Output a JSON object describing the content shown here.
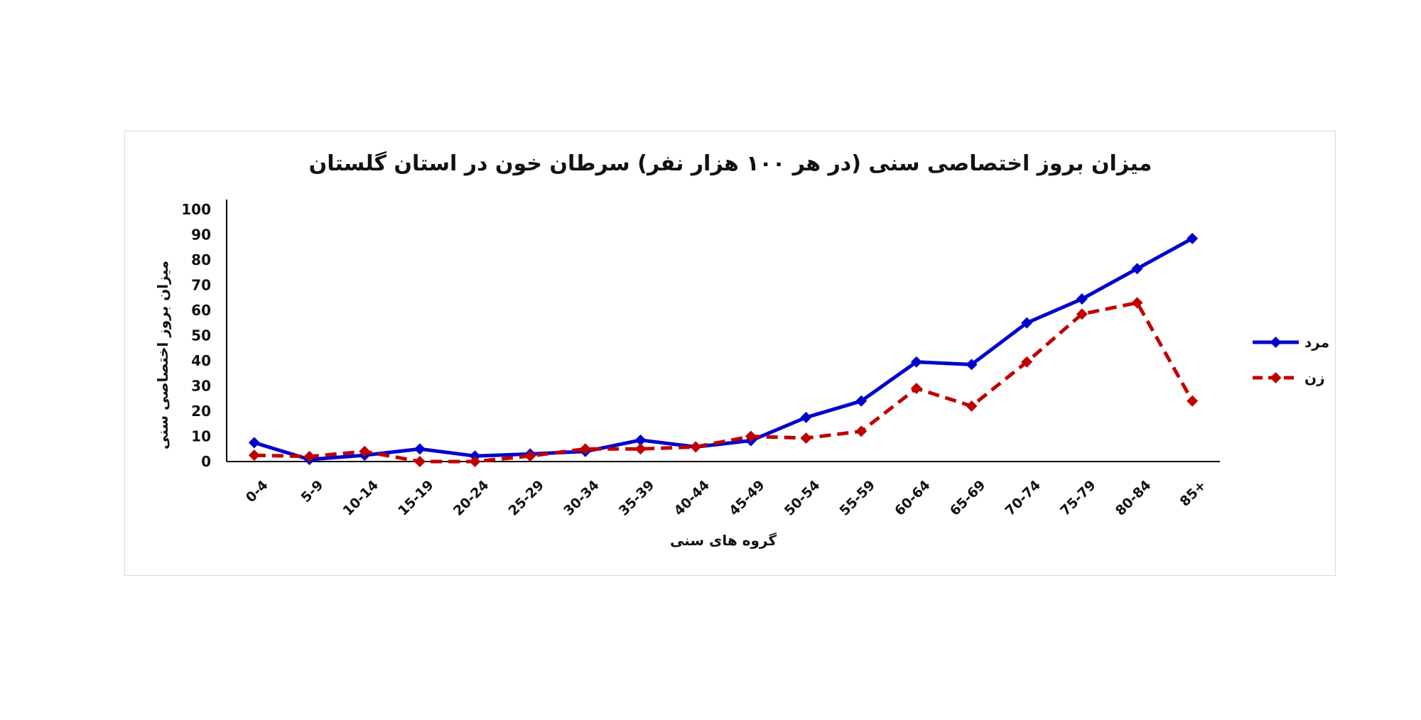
{
  "chart_data": {
    "type": "line",
    "title": "میزان بروز اختصاصی سنی (در هر ۱۰۰ هزار نفر) سرطان خون در استان گلستان",
    "xlabel": "گروه های سنی",
    "ylabel": "میزان بروز اختصاصی سنی",
    "ylim": [
      0,
      100
    ],
    "yticks": [
      0,
      10,
      20,
      30,
      40,
      50,
      60,
      70,
      80,
      90,
      100
    ],
    "categories": [
      "0-4",
      "5-9",
      "10-14",
      "15-19",
      "20-24",
      "25-29",
      "30-34",
      "35-39",
      "40-44",
      "45-49",
      "50-54",
      "55-59",
      "60-64",
      "65-69",
      "70-74",
      "75-79",
      "80-84",
      "85+"
    ],
    "series": [
      {
        "name": "مرد",
        "color": "#0000cc",
        "dash": false,
        "values": [
          7.5,
          0.8,
          2.5,
          5,
          2.2,
          3,
          4,
          8.5,
          5.8,
          8.3,
          17.5,
          24,
          39.5,
          38.5,
          55,
          64.5,
          76.5,
          88.5
        ]
      },
      {
        "name": "زن",
        "color": "#c00000",
        "dash": true,
        "values": [
          2.5,
          2,
          4,
          0,
          0,
          2.2,
          5,
          5,
          5.8,
          10,
          9.3,
          12,
          29,
          22,
          39.5,
          58.5,
          63,
          24
        ]
      }
    ],
    "grid": false,
    "legend_position": "right"
  }
}
